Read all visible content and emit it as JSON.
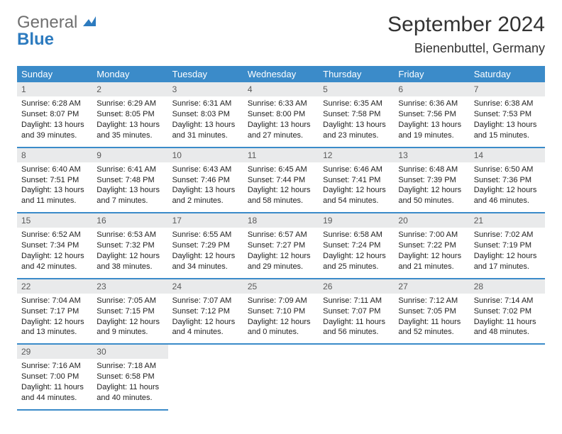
{
  "brand": {
    "gray": "General",
    "blue": "Blue"
  },
  "title": "September 2024",
  "location": "Bienenbuttel, Germany",
  "colors": {
    "header_bg": "#3b8bc9",
    "header_text": "#ffffff",
    "daynum_bg": "#e9eaeb",
    "daynum_text": "#5a5a5a",
    "row_divider": "#3b8bc9",
    "body_text": "#222222",
    "logo_gray": "#6f6f6f",
    "logo_blue": "#2d7bbf",
    "page_bg": "#ffffff"
  },
  "typography": {
    "title_fontsize": 30,
    "location_fontsize": 18,
    "header_fontsize": 13,
    "cell_fontsize": 11,
    "daynum_fontsize": 12
  },
  "weekdays": [
    "Sunday",
    "Monday",
    "Tuesday",
    "Wednesday",
    "Thursday",
    "Friday",
    "Saturday"
  ],
  "weeks": [
    [
      {
        "n": "1",
        "sunrise": "Sunrise: 6:28 AM",
        "sunset": "Sunset: 8:07 PM",
        "daylight": "Daylight: 13 hours and 39 minutes."
      },
      {
        "n": "2",
        "sunrise": "Sunrise: 6:29 AM",
        "sunset": "Sunset: 8:05 PM",
        "daylight": "Daylight: 13 hours and 35 minutes."
      },
      {
        "n": "3",
        "sunrise": "Sunrise: 6:31 AM",
        "sunset": "Sunset: 8:03 PM",
        "daylight": "Daylight: 13 hours and 31 minutes."
      },
      {
        "n": "4",
        "sunrise": "Sunrise: 6:33 AM",
        "sunset": "Sunset: 8:00 PM",
        "daylight": "Daylight: 13 hours and 27 minutes."
      },
      {
        "n": "5",
        "sunrise": "Sunrise: 6:35 AM",
        "sunset": "Sunset: 7:58 PM",
        "daylight": "Daylight: 13 hours and 23 minutes."
      },
      {
        "n": "6",
        "sunrise": "Sunrise: 6:36 AM",
        "sunset": "Sunset: 7:56 PM",
        "daylight": "Daylight: 13 hours and 19 minutes."
      },
      {
        "n": "7",
        "sunrise": "Sunrise: 6:38 AM",
        "sunset": "Sunset: 7:53 PM",
        "daylight": "Daylight: 13 hours and 15 minutes."
      }
    ],
    [
      {
        "n": "8",
        "sunrise": "Sunrise: 6:40 AM",
        "sunset": "Sunset: 7:51 PM",
        "daylight": "Daylight: 13 hours and 11 minutes."
      },
      {
        "n": "9",
        "sunrise": "Sunrise: 6:41 AM",
        "sunset": "Sunset: 7:48 PM",
        "daylight": "Daylight: 13 hours and 7 minutes."
      },
      {
        "n": "10",
        "sunrise": "Sunrise: 6:43 AM",
        "sunset": "Sunset: 7:46 PM",
        "daylight": "Daylight: 13 hours and 2 minutes."
      },
      {
        "n": "11",
        "sunrise": "Sunrise: 6:45 AM",
        "sunset": "Sunset: 7:44 PM",
        "daylight": "Daylight: 12 hours and 58 minutes."
      },
      {
        "n": "12",
        "sunrise": "Sunrise: 6:46 AM",
        "sunset": "Sunset: 7:41 PM",
        "daylight": "Daylight: 12 hours and 54 minutes."
      },
      {
        "n": "13",
        "sunrise": "Sunrise: 6:48 AM",
        "sunset": "Sunset: 7:39 PM",
        "daylight": "Daylight: 12 hours and 50 minutes."
      },
      {
        "n": "14",
        "sunrise": "Sunrise: 6:50 AM",
        "sunset": "Sunset: 7:36 PM",
        "daylight": "Daylight: 12 hours and 46 minutes."
      }
    ],
    [
      {
        "n": "15",
        "sunrise": "Sunrise: 6:52 AM",
        "sunset": "Sunset: 7:34 PM",
        "daylight": "Daylight: 12 hours and 42 minutes."
      },
      {
        "n": "16",
        "sunrise": "Sunrise: 6:53 AM",
        "sunset": "Sunset: 7:32 PM",
        "daylight": "Daylight: 12 hours and 38 minutes."
      },
      {
        "n": "17",
        "sunrise": "Sunrise: 6:55 AM",
        "sunset": "Sunset: 7:29 PM",
        "daylight": "Daylight: 12 hours and 34 minutes."
      },
      {
        "n": "18",
        "sunrise": "Sunrise: 6:57 AM",
        "sunset": "Sunset: 7:27 PM",
        "daylight": "Daylight: 12 hours and 29 minutes."
      },
      {
        "n": "19",
        "sunrise": "Sunrise: 6:58 AM",
        "sunset": "Sunset: 7:24 PM",
        "daylight": "Daylight: 12 hours and 25 minutes."
      },
      {
        "n": "20",
        "sunrise": "Sunrise: 7:00 AM",
        "sunset": "Sunset: 7:22 PM",
        "daylight": "Daylight: 12 hours and 21 minutes."
      },
      {
        "n": "21",
        "sunrise": "Sunrise: 7:02 AM",
        "sunset": "Sunset: 7:19 PM",
        "daylight": "Daylight: 12 hours and 17 minutes."
      }
    ],
    [
      {
        "n": "22",
        "sunrise": "Sunrise: 7:04 AM",
        "sunset": "Sunset: 7:17 PM",
        "daylight": "Daylight: 12 hours and 13 minutes."
      },
      {
        "n": "23",
        "sunrise": "Sunrise: 7:05 AM",
        "sunset": "Sunset: 7:15 PM",
        "daylight": "Daylight: 12 hours and 9 minutes."
      },
      {
        "n": "24",
        "sunrise": "Sunrise: 7:07 AM",
        "sunset": "Sunset: 7:12 PM",
        "daylight": "Daylight: 12 hours and 4 minutes."
      },
      {
        "n": "25",
        "sunrise": "Sunrise: 7:09 AM",
        "sunset": "Sunset: 7:10 PM",
        "daylight": "Daylight: 12 hours and 0 minutes."
      },
      {
        "n": "26",
        "sunrise": "Sunrise: 7:11 AM",
        "sunset": "Sunset: 7:07 PM",
        "daylight": "Daylight: 11 hours and 56 minutes."
      },
      {
        "n": "27",
        "sunrise": "Sunrise: 7:12 AM",
        "sunset": "Sunset: 7:05 PM",
        "daylight": "Daylight: 11 hours and 52 minutes."
      },
      {
        "n": "28",
        "sunrise": "Sunrise: 7:14 AM",
        "sunset": "Sunset: 7:02 PM",
        "daylight": "Daylight: 11 hours and 48 minutes."
      }
    ],
    [
      {
        "n": "29",
        "sunrise": "Sunrise: 7:16 AM",
        "sunset": "Sunset: 7:00 PM",
        "daylight": "Daylight: 11 hours and 44 minutes."
      },
      {
        "n": "30",
        "sunrise": "Sunrise: 7:18 AM",
        "sunset": "Sunset: 6:58 PM",
        "daylight": "Daylight: 11 hours and 40 minutes."
      },
      null,
      null,
      null,
      null,
      null
    ]
  ]
}
